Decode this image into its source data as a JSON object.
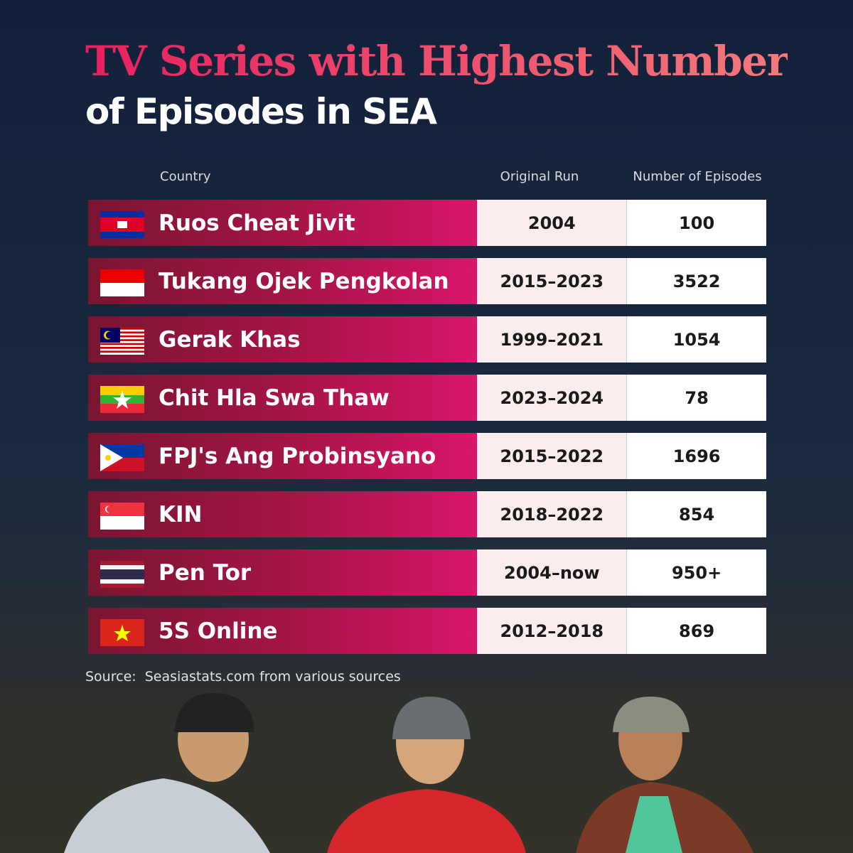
{
  "title": {
    "line1": "TV Series with Highest Number",
    "line2": "of Episodes in SEA"
  },
  "table": {
    "headers": [
      "Country",
      "Original Run",
      "Number of Episodes"
    ],
    "rows": [
      [
        "Ruos Cheat Jivit",
        "2004",
        "100"
      ],
      [
        "Tukang Ojek Pengkolan",
        "2015–2023",
        "3522"
      ],
      [
        "Gerak Khas",
        "1999–2021",
        "1054"
      ],
      [
        "Chit Hla Swa Thaw",
        "2023–2024",
        "78"
      ],
      [
        "FPJ's Ang Probinsyano",
        "2015–2022",
        "1696"
      ],
      [
        "KIN",
        "2018–2022",
        "854"
      ],
      [
        "Pen Tor",
        "2004–now",
        "950+"
      ],
      [
        "5S Online",
        "2012–2018",
        "869"
      ]
    ]
  },
  "source": "Source:  Seasiastats.com from various sources"
}
